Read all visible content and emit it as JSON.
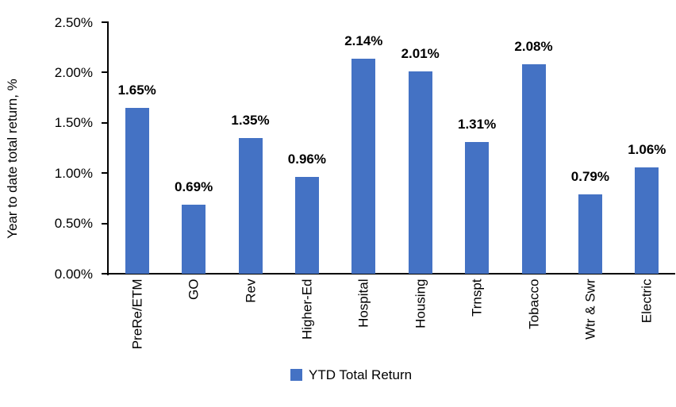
{
  "chart_data": {
    "type": "bar",
    "title": "",
    "xlabel": "",
    "ylabel": "Year to date total return, %",
    "categories": [
      "PreRe/ETM",
      "GO",
      "Rev",
      "Higher-Ed",
      "Hospital",
      "Housing",
      "Trnspt",
      "Tobacco",
      "Wtr & Swr",
      "Electric"
    ],
    "series": [
      {
        "name": "YTD Total Return",
        "values": [
          1.65,
          0.69,
          1.35,
          0.96,
          2.14,
          2.01,
          1.31,
          2.08,
          0.79,
          1.06
        ],
        "data_labels": [
          "1.65%",
          "0.69%",
          "1.35%",
          "0.96%",
          "2.14%",
          "2.01%",
          "1.31%",
          "2.08%",
          "0.79%",
          "1.06%"
        ]
      }
    ],
    "y_ticks": [
      0,
      0.5,
      1,
      1.5,
      2,
      2.5
    ],
    "y_tick_labels": [
      "0.00%",
      "0.50%",
      "1.00%",
      "1.50%",
      "2.00%",
      "2.50%"
    ],
    "ylim": [
      0,
      2.5
    ],
    "grid": false,
    "legend_position": "bottom",
    "colors": {
      "bar": "#4472C4",
      "axis": "#000000",
      "text": "#000000"
    }
  }
}
